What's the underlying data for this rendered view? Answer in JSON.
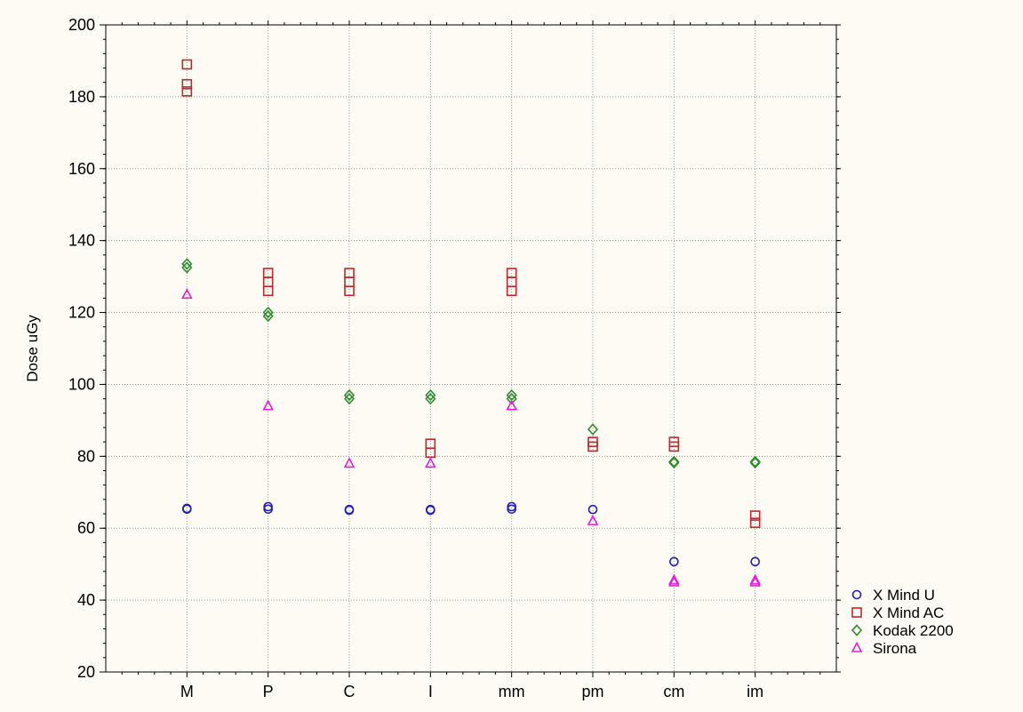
{
  "chart_data": {
    "type": "scatter",
    "title": "",
    "xlabel": "",
    "ylabel": "Dose uGy",
    "ylim": [
      20,
      200
    ],
    "yticks": [
      20,
      40,
      60,
      80,
      100,
      120,
      140,
      160,
      180,
      200
    ],
    "categories": [
      "M",
      "P",
      "C",
      "I",
      "mm",
      "pm",
      "cm",
      "im"
    ],
    "grid": true,
    "legend_position": "bottom-right outside",
    "series": [
      {
        "name": "X Mind U",
        "marker": "circle",
        "color": "#1f1fb0",
        "points": [
          {
            "x": "M",
            "y": 65.5
          },
          {
            "x": "M",
            "y": 65.3
          },
          {
            "x": "P",
            "y": 66
          },
          {
            "x": "P",
            "y": 65.3
          },
          {
            "x": "C",
            "y": 65.2
          },
          {
            "x": "C",
            "y": 65
          },
          {
            "x": "I",
            "y": 65.2
          },
          {
            "x": "I",
            "y": 65
          },
          {
            "x": "mm",
            "y": 66
          },
          {
            "x": "mm",
            "y": 65.3
          },
          {
            "x": "pm",
            "y": 65.2
          },
          {
            "x": "cm",
            "y": 50.7
          },
          {
            "x": "im",
            "y": 50.7
          }
        ]
      },
      {
        "name": "X Mind AC",
        "marker": "square",
        "color": "#c0282d",
        "points": [
          {
            "x": "M",
            "y": 189
          },
          {
            "x": "M",
            "y": 183.5
          },
          {
            "x": "M",
            "y": 181.5
          },
          {
            "x": "P",
            "y": 131
          },
          {
            "x": "P",
            "y": 128.5
          },
          {
            "x": "P",
            "y": 126
          },
          {
            "x": "C",
            "y": 131
          },
          {
            "x": "C",
            "y": 128.5
          },
          {
            "x": "C",
            "y": 126
          },
          {
            "x": "I",
            "y": 83.5
          },
          {
            "x": "I",
            "y": 81
          },
          {
            "x": "mm",
            "y": 131
          },
          {
            "x": "mm",
            "y": 128.5
          },
          {
            "x": "mm",
            "y": 126
          },
          {
            "x": "pm",
            "y": 84
          },
          {
            "x": "pm",
            "y": 82.7
          },
          {
            "x": "cm",
            "y": 84
          },
          {
            "x": "cm",
            "y": 82.7
          },
          {
            "x": "im",
            "y": 63.5
          },
          {
            "x": "im",
            "y": 61.5
          }
        ]
      },
      {
        "name": "Kodak 2200",
        "marker": "diamond",
        "color": "#2e8b2e",
        "points": [
          {
            "x": "M",
            "y": 133.5
          },
          {
            "x": "M",
            "y": 132.5
          },
          {
            "x": "P",
            "y": 120
          },
          {
            "x": "P",
            "y": 119
          },
          {
            "x": "C",
            "y": 97
          },
          {
            "x": "C",
            "y": 96
          },
          {
            "x": "I",
            "y": 97
          },
          {
            "x": "I",
            "y": 96
          },
          {
            "x": "mm",
            "y": 97
          },
          {
            "x": "mm",
            "y": 96
          },
          {
            "x": "pm",
            "y": 87.5
          },
          {
            "x": "cm",
            "y": 78.5
          },
          {
            "x": "cm",
            "y": 78.2
          },
          {
            "x": "im",
            "y": 78.5
          },
          {
            "x": "im",
            "y": 78.2
          }
        ]
      },
      {
        "name": "Sirona",
        "marker": "triangle",
        "color": "#e020d8",
        "points": [
          {
            "x": "M",
            "y": 125
          },
          {
            "x": "P",
            "y": 94
          },
          {
            "x": "C",
            "y": 78
          },
          {
            "x": "I",
            "y": 78
          },
          {
            "x": "mm",
            "y": 94
          },
          {
            "x": "pm",
            "y": 62
          },
          {
            "x": "cm",
            "y": 45.5
          },
          {
            "x": "cm",
            "y": 45
          },
          {
            "x": "im",
            "y": 45.5
          },
          {
            "x": "im",
            "y": 45
          }
        ]
      }
    ]
  }
}
